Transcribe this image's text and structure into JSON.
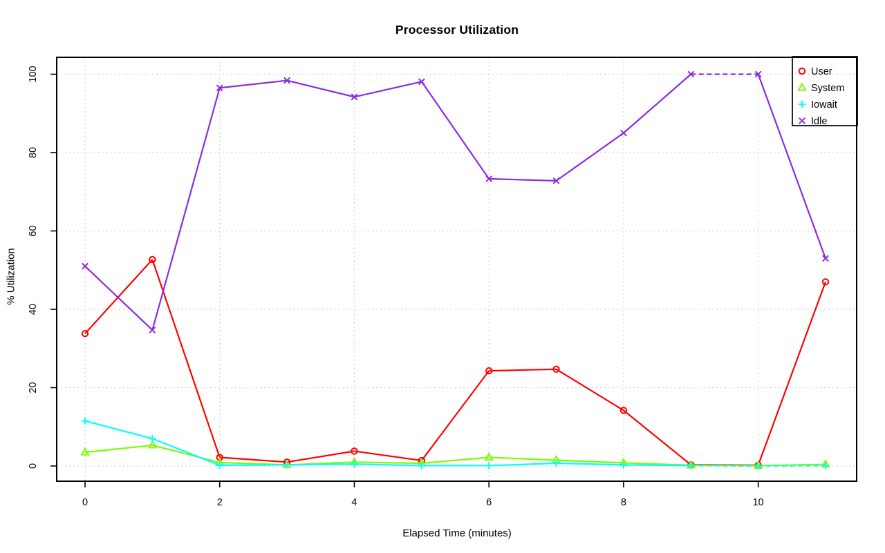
{
  "chart_data": {
    "type": "line",
    "title": "Processor Utilization",
    "xlabel": "Elapsed Time (minutes)",
    "ylabel": "% Utilization",
    "x": [
      0,
      1,
      2,
      3,
      4,
      5,
      6,
      7,
      8,
      9,
      10,
      11
    ],
    "xlim": [
      0,
      11
    ],
    "ylim": [
      0,
      100
    ],
    "x_ticks": [
      0,
      2,
      4,
      6,
      8,
      10
    ],
    "y_ticks": [
      0,
      20,
      40,
      60,
      80,
      100
    ],
    "grid": "dotted",
    "legend_position": "top-right",
    "series": [
      {
        "name": "User",
        "color": "#ff0000",
        "marker": "circle",
        "values": [
          33.8,
          52.7,
          2.2,
          1.0,
          3.8,
          1.4,
          24.3,
          24.7,
          14.2,
          0.3,
          0.2,
          47.0
        ]
      },
      {
        "name": "System",
        "color": "#7cfc00",
        "marker": "triangle",
        "values": [
          3.5,
          5.3,
          0.9,
          0.3,
          1.0,
          0.7,
          2.2,
          1.5,
          0.8,
          0.2,
          0.1,
          0.4
        ]
      },
      {
        "name": "Iowait",
        "color": "#00ffff",
        "marker": "plus",
        "values": [
          11.5,
          7.0,
          0.2,
          0.3,
          0.5,
          0.1,
          0.1,
          0.7,
          0.3,
          0.1,
          0.0,
          0.1
        ],
        "dashed_between": [
          9,
          11
        ]
      },
      {
        "name": "Idle",
        "color": "#8a2be2",
        "marker": "x",
        "values": [
          51.0,
          34.7,
          96.5,
          98.4,
          94.2,
          98.1,
          73.3,
          72.8,
          85.0,
          100.0,
          100.0,
          53.0
        ],
        "dashed_between": [
          9,
          10
        ]
      }
    ]
  },
  "colors": {
    "background": "#ffffff",
    "axis": "#000000",
    "grid": "#c9c9c9",
    "text": "#000000"
  }
}
